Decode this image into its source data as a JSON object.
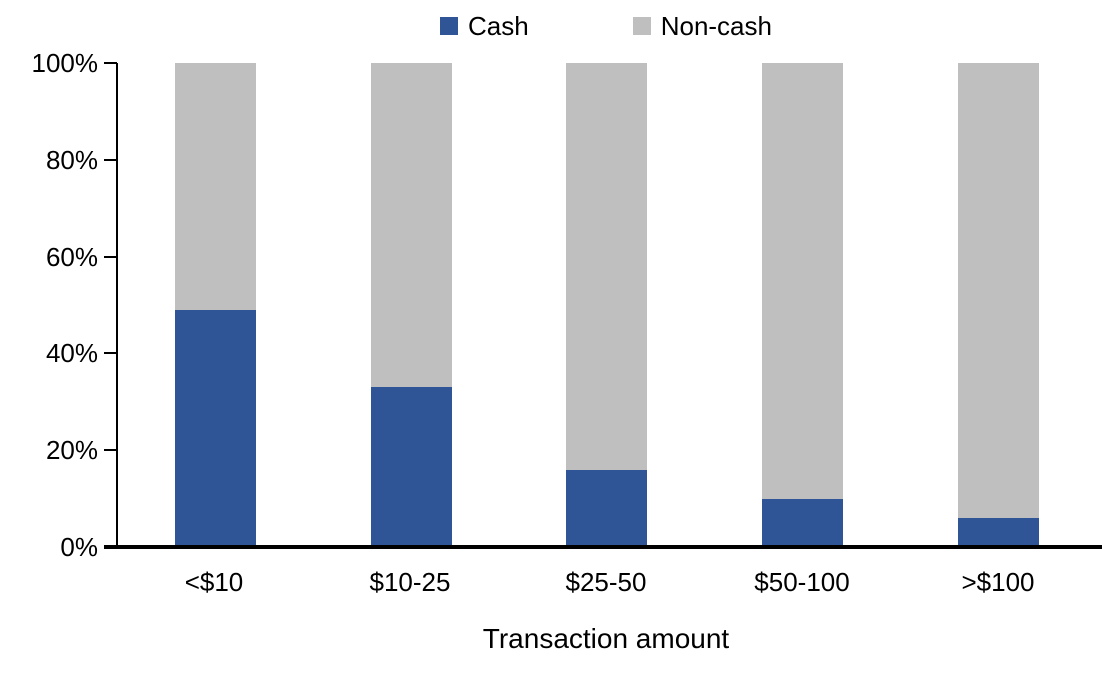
{
  "chart_data": {
    "type": "bar",
    "stacked": true,
    "stacked_total": 100,
    "title": "",
    "xlabel": "Transaction amount",
    "ylabel": "",
    "categories": [
      "<$10",
      "$10-25",
      "$25-50",
      "$50-100",
      ">$100"
    ],
    "series": [
      {
        "name": "Cash",
        "color": "#2F5597",
        "values": [
          49,
          33,
          16,
          10,
          6
        ]
      },
      {
        "name": "Non-cash",
        "color": "#BFBFBF",
        "values": [
          51,
          67,
          84,
          90,
          94
        ]
      }
    ],
    "ylim": [
      0,
      100
    ],
    "y_tick_labels": [
      "0%",
      "20%",
      "40%",
      "60%",
      "80%",
      "100%"
    ],
    "y_tick_values": [
      0,
      20,
      40,
      60,
      80,
      100
    ],
    "grid": false,
    "legend_position": "top-center",
    "axis_color": "#000000",
    "background_color": "#FFFFFF"
  }
}
